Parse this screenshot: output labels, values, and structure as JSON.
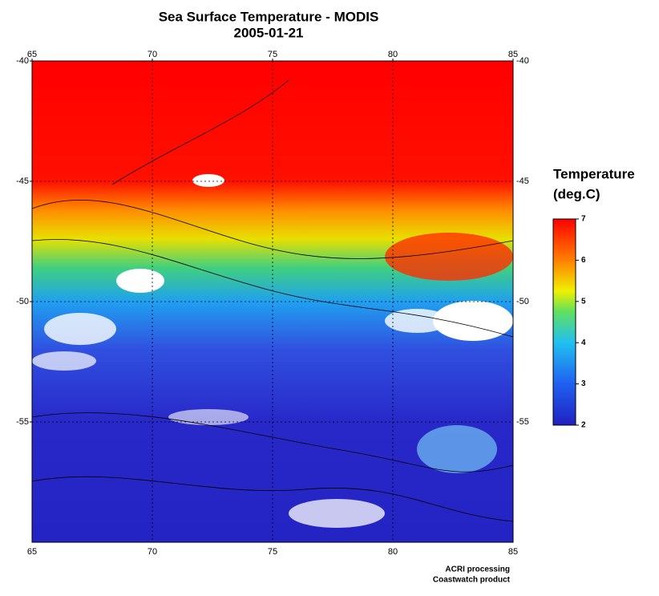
{
  "header": {
    "title": "Sea Surface Temperature - MODIS",
    "subtitle": "2005-01-21"
  },
  "map": {
    "xlim": [
      65,
      85
    ],
    "ylim": [
      -60,
      -40
    ],
    "xticks": [
      65,
      70,
      75,
      80,
      85
    ],
    "yticks": [
      -40,
      -45,
      -50,
      -55
    ],
    "grid": true
  },
  "colorbar": {
    "title": [
      "Temperature",
      "(deg.C)"
    ],
    "lim": [
      2,
      7
    ],
    "ticks": [
      2,
      3,
      4,
      5,
      6,
      7
    ]
  },
  "footer": {
    "lines": [
      "ACRI processing",
      "Coastwatch product"
    ]
  }
}
